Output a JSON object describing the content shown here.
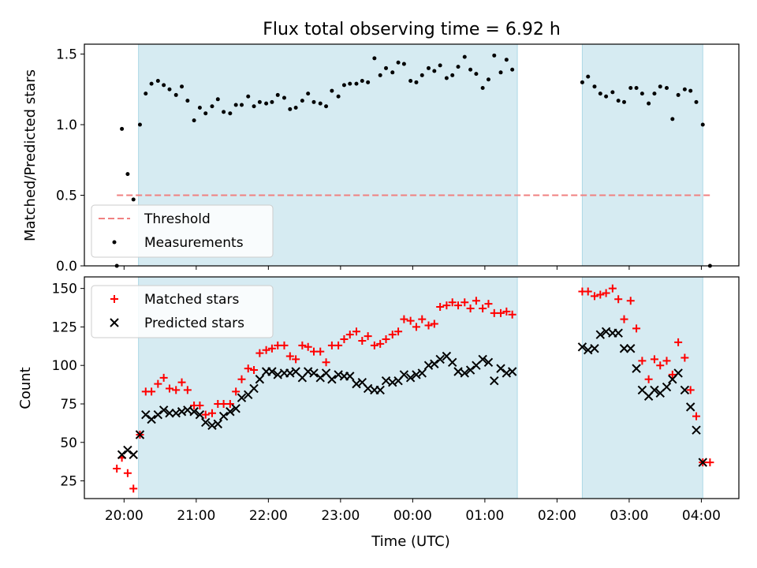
{
  "chart_data": [
    {
      "type": "scatter",
      "title": "Flux total observing time = 6.92 h",
      "ylabel": "Matched/Predicted stars",
      "xlabel": "",
      "x_units": "hours after 00:00 UTC of the first night (24 = 00:00 next day)",
      "xlim": [
        19.45,
        28.52
      ],
      "ylim": [
        0,
        1.57
      ],
      "yticks": [
        0.0,
        0.5,
        1.0,
        1.5
      ],
      "ytick_labels": [
        "0.0",
        "0.5",
        "1.0",
        "1.5"
      ],
      "legend_position": "lower-left",
      "shaded_spans": [
        [
          20.2,
          25.45
        ],
        [
          26.35,
          28.02
        ]
      ],
      "shade_color": "#add8e6",
      "threshold": {
        "name": "Threshold",
        "value": 0.5,
        "x_range": [
          19.9,
          28.12
        ],
        "color": "#f08080"
      },
      "series": [
        {
          "name": "Measurements",
          "color": "#000000",
          "marker": "dot",
          "x": [
            19.9,
            19.97,
            20.05,
            20.13,
            20.22,
            20.3,
            20.38,
            20.47,
            20.55,
            20.63,
            20.72,
            20.8,
            20.88,
            20.97,
            21.05,
            21.13,
            21.22,
            21.3,
            21.38,
            21.47,
            21.55,
            21.63,
            21.72,
            21.8,
            21.88,
            21.97,
            22.05,
            22.13,
            22.22,
            22.3,
            22.38,
            22.47,
            22.55,
            22.63,
            22.72,
            22.8,
            22.88,
            22.97,
            23.05,
            23.13,
            23.22,
            23.3,
            23.38,
            23.47,
            23.55,
            23.63,
            23.72,
            23.8,
            23.88,
            23.97,
            24.05,
            24.13,
            24.22,
            24.3,
            24.38,
            24.47,
            24.55,
            24.63,
            24.72,
            24.8,
            24.88,
            24.97,
            25.05,
            25.13,
            25.22,
            25.3,
            25.38,
            26.35,
            26.43,
            26.52,
            26.6,
            26.68,
            26.77,
            26.85,
            26.93,
            27.02,
            27.1,
            27.18,
            27.27,
            27.35,
            27.43,
            27.52,
            27.6,
            27.68,
            27.77,
            27.85,
            27.93,
            28.02,
            28.12
          ],
          "y": [
            0.0,
            0.97,
            0.65,
            0.47,
            1.0,
            1.22,
            1.29,
            1.31,
            1.28,
            1.25,
            1.21,
            1.27,
            1.17,
            1.03,
            1.12,
            1.08,
            1.13,
            1.18,
            1.09,
            1.08,
            1.14,
            1.14,
            1.2,
            1.13,
            1.16,
            1.15,
            1.16,
            1.21,
            1.19,
            1.11,
            1.12,
            1.17,
            1.22,
            1.16,
            1.15,
            1.13,
            1.24,
            1.2,
            1.28,
            1.29,
            1.29,
            1.31,
            1.3,
            1.47,
            1.35,
            1.4,
            1.37,
            1.44,
            1.43,
            1.31,
            1.3,
            1.35,
            1.4,
            1.38,
            1.42,
            1.33,
            1.35,
            1.41,
            1.48,
            1.39,
            1.36,
            1.26,
            1.32,
            1.49,
            1.37,
            1.46,
            1.39,
            1.3,
            1.34,
            1.27,
            1.22,
            1.2,
            1.23,
            1.17,
            1.16,
            1.26,
            1.26,
            1.22,
            1.15,
            1.22,
            1.27,
            1.26,
            1.04,
            1.21,
            1.25,
            1.24,
            1.16,
            1.0,
            0.0
          ]
        }
      ]
    },
    {
      "type": "scatter",
      "title": "",
      "ylabel": "Count",
      "xlabel": "Time (UTC)",
      "x_units": "hours after 00:00 UTC of the first night (24 = 00:00 next day)",
      "xlim": [
        19.45,
        28.52
      ],
      "ylim": [
        13.5,
        157.5
      ],
      "yticks": [
        25,
        50,
        75,
        100,
        125,
        150
      ],
      "ytick_labels": [
        "25",
        "50",
        "75",
        "100",
        "125",
        "150"
      ],
      "xticks": [
        20,
        21,
        22,
        23,
        24,
        25,
        26,
        27,
        28
      ],
      "xtick_labels": [
        "20:00",
        "21:00",
        "22:00",
        "23:00",
        "00:00",
        "01:00",
        "02:00",
        "03:00",
        "04:00"
      ],
      "legend_position": "upper-left",
      "shaded_spans": [
        [
          20.2,
          25.45
        ],
        [
          26.35,
          28.02
        ]
      ],
      "shade_color": "#add8e6",
      "series": [
        {
          "name": "Matched stars",
          "color": "#ff0000",
          "marker": "plus",
          "x": [
            19.9,
            19.97,
            20.05,
            20.13,
            20.22,
            20.3,
            20.38,
            20.47,
            20.55,
            20.63,
            20.72,
            20.8,
            20.88,
            20.97,
            21.05,
            21.13,
            21.22,
            21.3,
            21.38,
            21.47,
            21.55,
            21.63,
            21.72,
            21.8,
            21.88,
            21.97,
            22.05,
            22.13,
            22.22,
            22.3,
            22.38,
            22.47,
            22.55,
            22.63,
            22.72,
            22.8,
            22.88,
            22.97,
            23.05,
            23.13,
            23.22,
            23.3,
            23.38,
            23.47,
            23.55,
            23.63,
            23.72,
            23.8,
            23.88,
            23.97,
            24.05,
            24.13,
            24.22,
            24.3,
            24.38,
            24.47,
            24.55,
            24.63,
            24.72,
            24.8,
            24.88,
            24.97,
            25.05,
            25.13,
            25.22,
            25.3,
            25.38,
            26.35,
            26.43,
            26.52,
            26.6,
            26.68,
            26.77,
            26.85,
            26.93,
            27.02,
            27.1,
            27.18,
            27.27,
            27.35,
            27.43,
            27.52,
            27.6,
            27.68,
            27.77,
            27.85,
            27.93,
            28.02,
            28.12
          ],
          "y": [
            33,
            40,
            30,
            20,
            55,
            83,
            83,
            88,
            92,
            85,
            84,
            89,
            84,
            74,
            74,
            68,
            69,
            75,
            75,
            75,
            83,
            91,
            98,
            97,
            108,
            110,
            111,
            113,
            113,
            106,
            104,
            113,
            112,
            109,
            109,
            102,
            113,
            113,
            117,
            120,
            122,
            116,
            119,
            113,
            114,
            117,
            120,
            122,
            130,
            129,
            125,
            130,
            126,
            127,
            138,
            139,
            141,
            139,
            141,
            137,
            142,
            137,
            140,
            134,
            134,
            135,
            133,
            148,
            148,
            145,
            146,
            147,
            150,
            143,
            130,
            142,
            124,
            103,
            91,
            104,
            100,
            103,
            94,
            115,
            105,
            84,
            67,
            37,
            37
          ]
        },
        {
          "name": "Predicted stars",
          "color": "#000000",
          "marker": "x",
          "x": [
            19.97,
            20.05,
            20.13,
            20.22,
            20.3,
            20.38,
            20.47,
            20.55,
            20.63,
            20.72,
            20.8,
            20.88,
            20.97,
            21.05,
            21.13,
            21.22,
            21.3,
            21.38,
            21.47,
            21.55,
            21.63,
            21.72,
            21.8,
            21.88,
            21.97,
            22.05,
            22.13,
            22.22,
            22.3,
            22.38,
            22.47,
            22.55,
            22.63,
            22.72,
            22.8,
            22.88,
            22.97,
            23.05,
            23.13,
            23.22,
            23.3,
            23.38,
            23.47,
            23.55,
            23.63,
            23.72,
            23.8,
            23.88,
            23.97,
            24.05,
            24.13,
            24.22,
            24.3,
            24.38,
            24.47,
            24.55,
            24.63,
            24.72,
            24.8,
            24.88,
            24.97,
            25.05,
            25.13,
            25.22,
            25.3,
            25.38,
            26.35,
            26.43,
            26.52,
            26.6,
            26.68,
            26.77,
            26.85,
            26.93,
            27.02,
            27.1,
            27.18,
            27.27,
            27.35,
            27.43,
            27.52,
            27.6,
            27.68,
            27.77,
            27.85,
            27.93,
            28.02
          ],
          "y": [
            42,
            45,
            42,
            55,
            68,
            65,
            68,
            71,
            69,
            69,
            70,
            71,
            70,
            68,
            63,
            61,
            62,
            67,
            70,
            72,
            79,
            81,
            85,
            91,
            96,
            96,
            94,
            95,
            95,
            96,
            92,
            96,
            95,
            92,
            95,
            91,
            94,
            93,
            93,
            88,
            89,
            85,
            84,
            84,
            90,
            89,
            90,
            94,
            92,
            94,
            95,
            100,
            101,
            104,
            106,
            102,
            96,
            95,
            97,
            100,
            104,
            102,
            90,
            98,
            95,
            96,
            112,
            110,
            111,
            120,
            122,
            121,
            121,
            111,
            111,
            98,
            84,
            80,
            84,
            82,
            86,
            91,
            95,
            84,
            73,
            58,
            37
          ]
        }
      ]
    }
  ]
}
